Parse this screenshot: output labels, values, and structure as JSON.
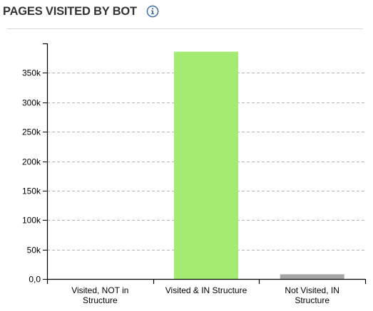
{
  "header": {
    "title": "PAGES VISITED BY BOT",
    "info_icon": "info-circle-icon"
  },
  "colors": {
    "bar_visited_in_structure": "#a3eb71",
    "bar_not_visited_in_structure": "#a6a6a6",
    "bar_visited_not_in_structure": "#a6a6a6",
    "grid": "#b3b3b3",
    "axis": "#000000",
    "icon": "#3a6ea5"
  },
  "chart_data": {
    "type": "bar",
    "categories": [
      [
        "Visited, NOT in",
        "Structure"
      ],
      [
        "Visited & IN Structure"
      ],
      [
        "Not Visited, IN",
        "Structure"
      ]
    ],
    "values": [
      0,
      386000,
      8000
    ],
    "ylim": [
      0,
      400000
    ],
    "yticks": [
      0,
      50000,
      100000,
      150000,
      200000,
      250000,
      300000,
      350000
    ],
    "ytick_labels": [
      "0,0",
      "50k",
      "100k",
      "150k",
      "200k",
      "250k",
      "300k",
      "350k"
    ],
    "grid": true,
    "grid_style": "dashed",
    "legend": "none"
  }
}
